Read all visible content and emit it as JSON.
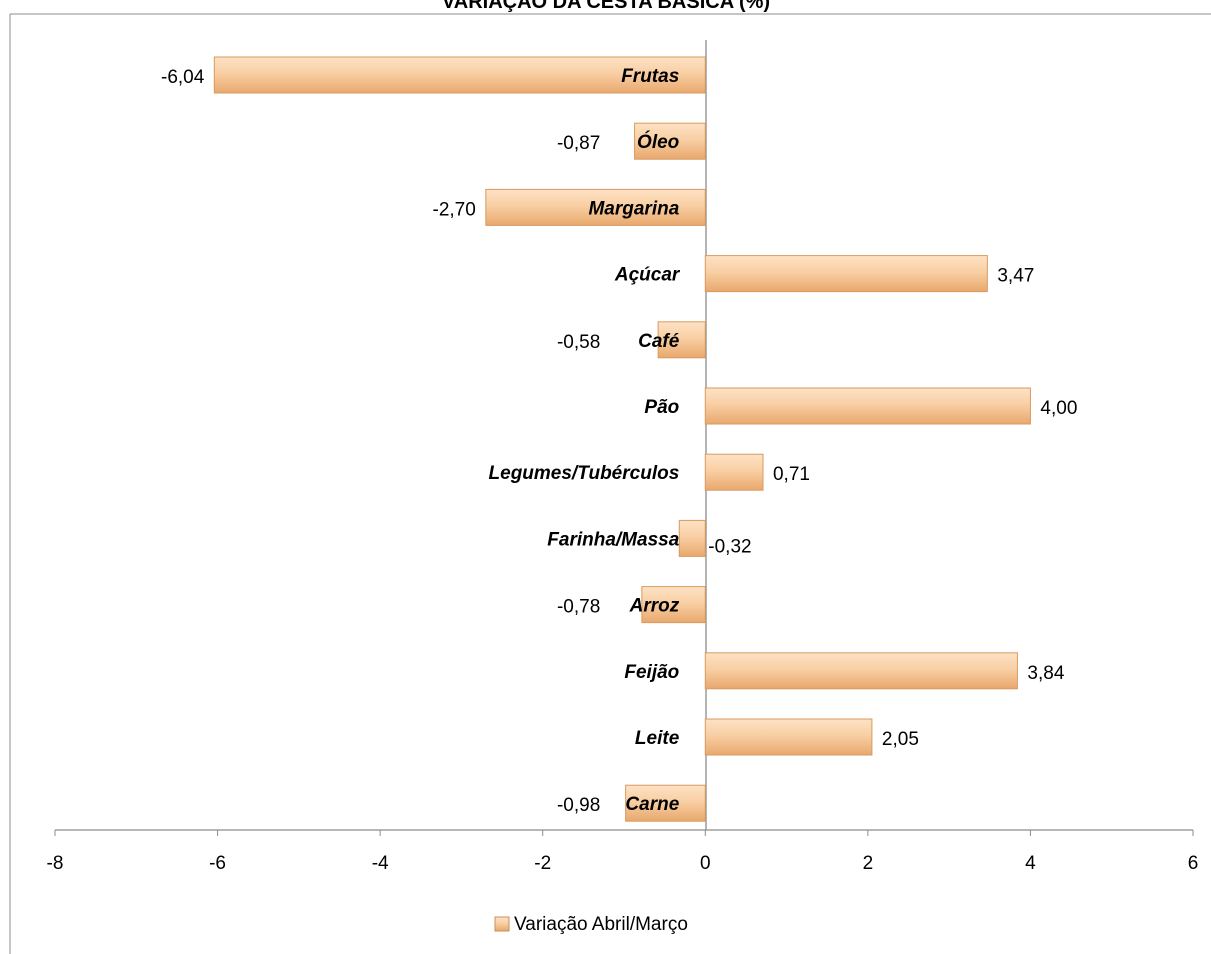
{
  "chart_data": {
    "type": "bar",
    "orientation": "horizontal",
    "title": "VARIAÇÃO DA CESTA BÁSICA (%)",
    "categories": [
      "Frutas",
      "Óleo",
      "Margarina",
      "Açúcar",
      "Café",
      "Pão",
      "Legumes/Tubérculos",
      "Farinha/Massa",
      "Arroz",
      "Feijão",
      "Leite",
      "Carne"
    ],
    "series": [
      {
        "name": "Variação Abril/Março",
        "values": [
          -6.04,
          -0.87,
          -2.7,
          3.47,
          -0.58,
          4.0,
          0.71,
          -0.32,
          -0.78,
          3.84,
          2.05,
          -0.98
        ],
        "labels": [
          "-6,04",
          "-0,87",
          "-2,70",
          "3,47",
          "-0,58",
          "4,00",
          "0,71",
          "-0,32",
          "-0,78",
          "3,84",
          "2,05",
          "-0,98"
        ],
        "color": "#f6c79a"
      }
    ],
    "xlim": [
      -8,
      6
    ],
    "xticks": [
      -8,
      -6,
      -4,
      -2,
      0,
      2,
      4,
      6
    ],
    "xlabel": "",
    "ylabel": "",
    "grid": false,
    "legend": "bottom"
  }
}
